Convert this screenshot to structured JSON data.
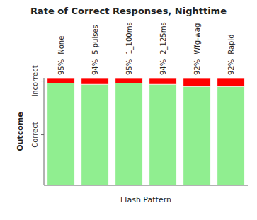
{
  "chart_data": {
    "type": "bar",
    "stacked": true,
    "data_labels": true,
    "title": "Rate of Correct Responses, Nighttime",
    "x_label": "Flash Pattern",
    "y_label": "Outcome",
    "categories": [
      "None",
      "5 pulses",
      "1_100ms",
      "2_125ms",
      "Wfg-wag",
      "Rapid"
    ],
    "series": [
      {
        "color": "#90EE90",
        "values": [
          0.95,
          0.94,
          0.95,
          0.94,
          0.92,
          0.92
        ],
        "value_labels": [
          "95%",
          "94%",
          "95%",
          "94%",
          "92%",
          "92%"
        ]
      },
      {
        "color": "#FF0000",
        "values": [
          0.05,
          0.06,
          0.05,
          0.06,
          0.08,
          0.08
        ]
      }
    ],
    "ylim": [
      0,
      1
    ],
    "yticks": [
      {
        "value": 0.47,
        "label": "Correct"
      },
      {
        "value": 0.97,
        "label": "Incorrect"
      }
    ],
    "grid": false
  }
}
